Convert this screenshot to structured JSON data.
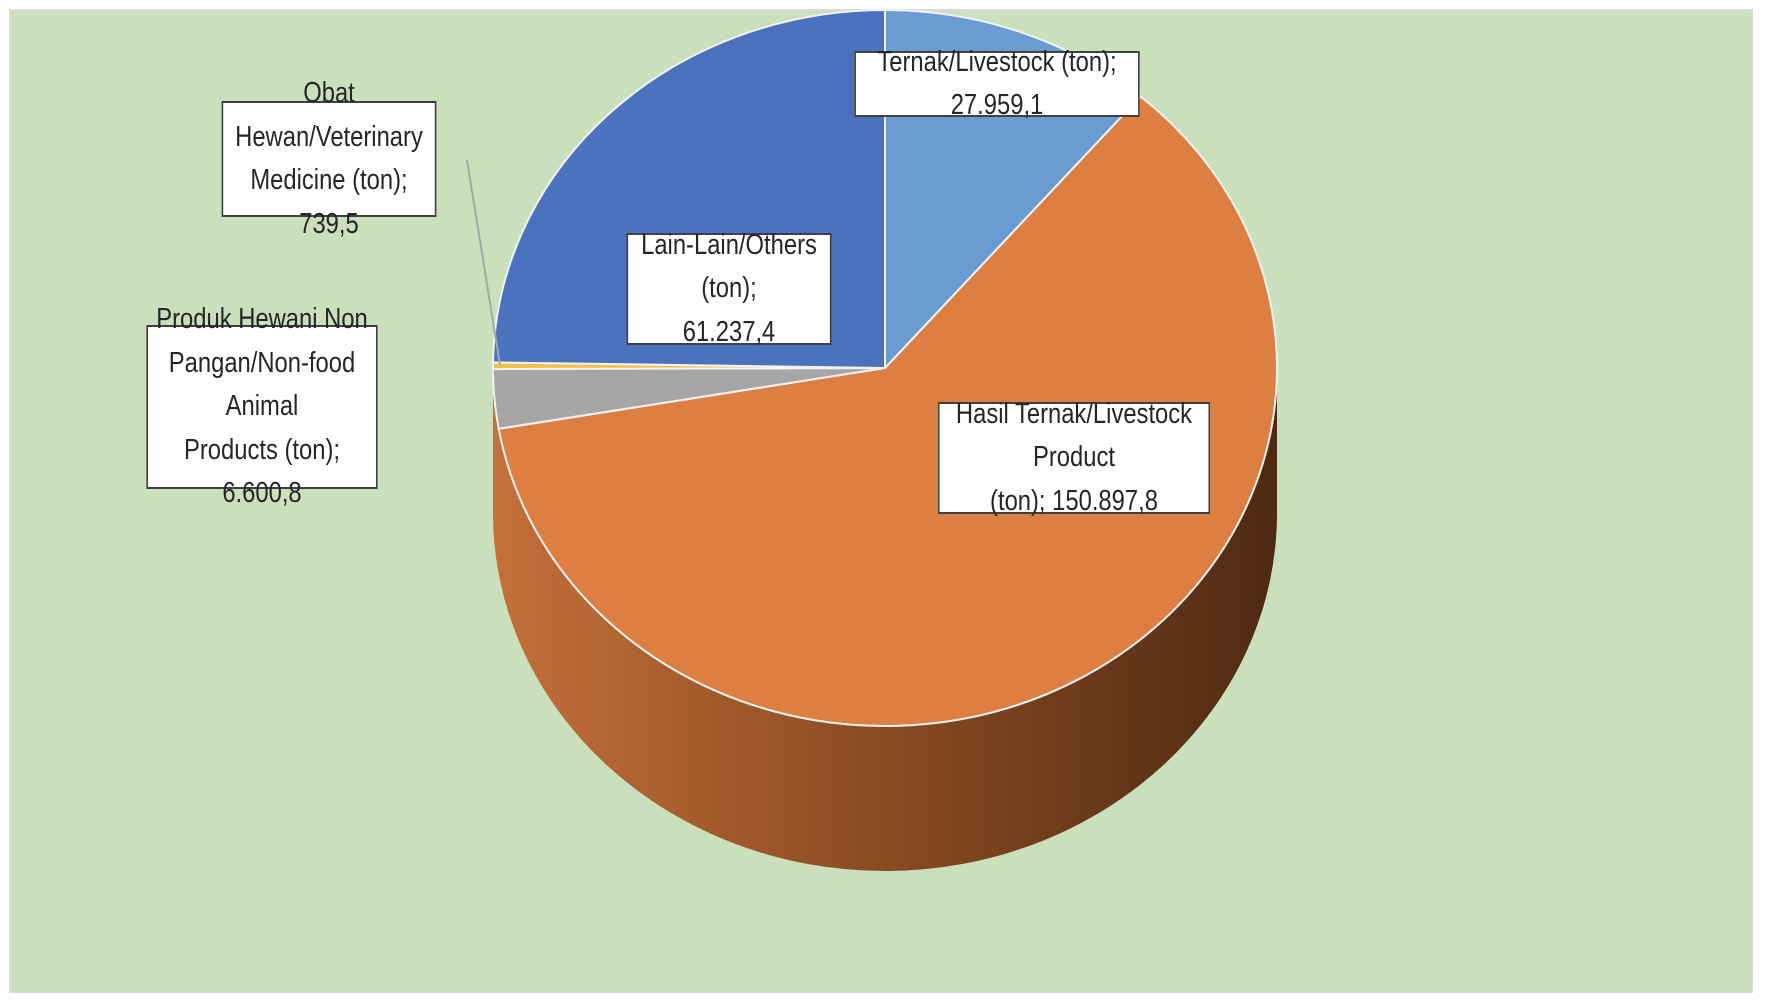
{
  "chart_data": {
    "type": "pie",
    "title": "",
    "background": "#cadfbb",
    "slices": [
      {
        "label": "Ternak/Livestock (ton); 27.959,1",
        "value": 27959.1,
        "color": "#6a9bd1"
      },
      {
        "label": "Hasil Ternak/Livestock Product (ton); 150.897,8",
        "value": 150897.8,
        "color": "#dd7f43"
      },
      {
        "label": "Produk Hewani Non Pangan/Non-food  Animal Products  (ton); 6.600,8",
        "value": 6600.8,
        "color": "#a6a6a6"
      },
      {
        "label": "Obat Hewan/Veterinary Medicine (ton); 739,5",
        "value": 739.5,
        "color": "#f2c14a"
      },
      {
        "label": "Lain-Lain/Others (ton); 61.237,4",
        "value": 61237.4,
        "color": "#4a72bd"
      }
    ],
    "data_labels": [
      {
        "lines": [
          "Ternak/Livestock (ton); 27.959,1"
        ]
      },
      {
        "lines": [
          "Hasil Ternak/Livestock Product",
          "(ton); 150.897,8"
        ]
      },
      {
        "lines": [
          "Produk Hewani Non",
          "Pangan/Non-food  Animal",
          "Products  (ton); 6.600,8"
        ]
      },
      {
        "lines": [
          "Obat Hewan/Veterinary",
          "Medicine (ton); 739,5"
        ]
      },
      {
        "lines": [
          "Lain-Lain/Others (ton);",
          "61.237,4"
        ]
      }
    ]
  }
}
